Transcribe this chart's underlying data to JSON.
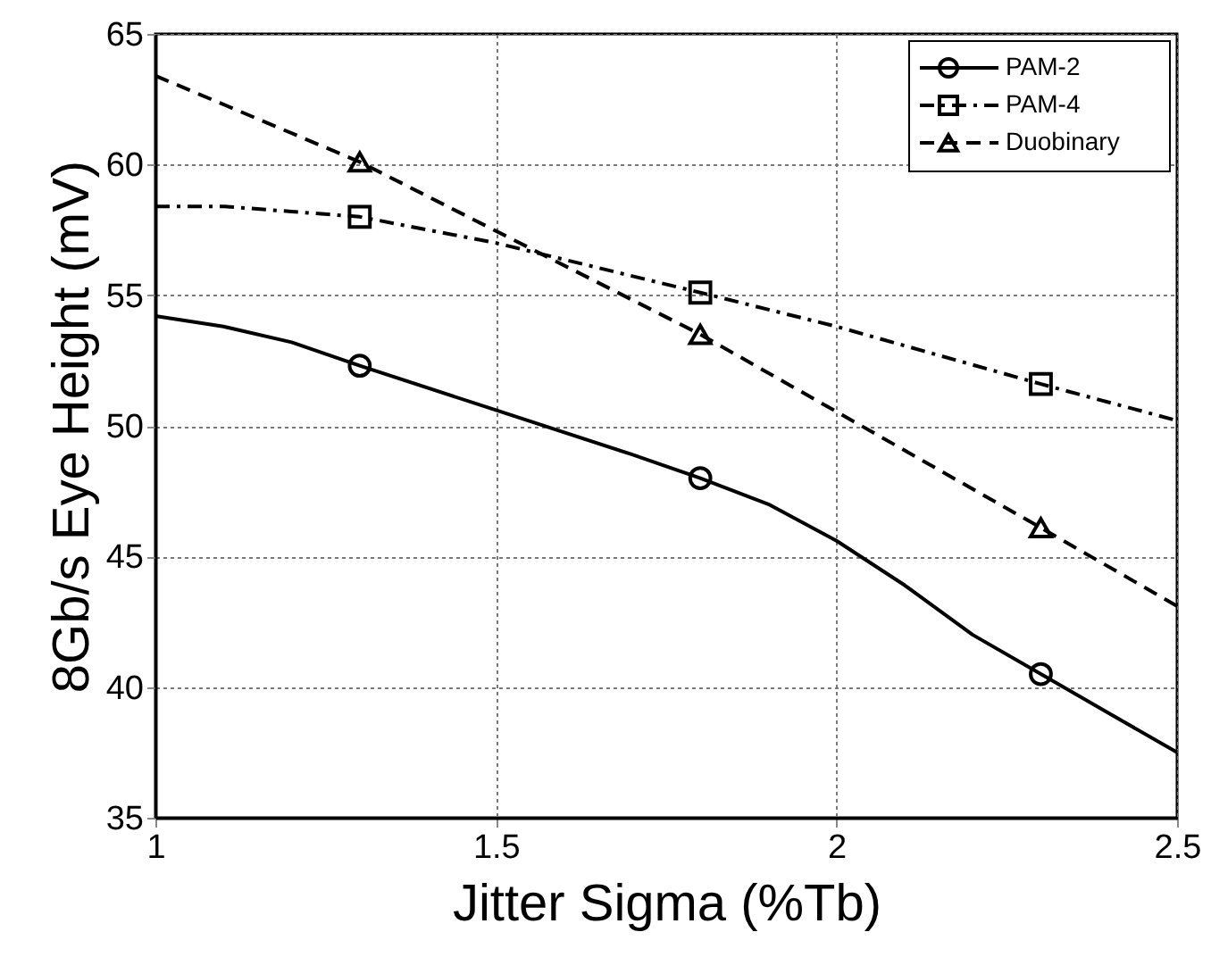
{
  "chart_data": {
    "type": "line",
    "xlabel": "Jitter Sigma (%Tb)",
    "ylabel": "8Gb/s Eye Height (mV)",
    "xlim": [
      1,
      2.5
    ],
    "xticks": [
      1,
      1.5,
      2,
      2.5
    ],
    "ylim": [
      35,
      65
    ],
    "yticks": [
      35,
      40,
      45,
      50,
      55,
      60,
      65
    ],
    "grid": true,
    "legend": "top right",
    "series": [
      {
        "name": "PAM-2",
        "type": "line",
        "color": "#000000",
        "line_style": "solid",
        "x": [
          1,
          1.1,
          1.2,
          1.3,
          1.5,
          1.7,
          1.8,
          1.9,
          2.0,
          2.1,
          2.2,
          2.3,
          2.4,
          2.5
        ],
        "values": [
          54.2,
          53.8,
          53.2,
          52.3,
          50.6,
          48.9,
          48.0,
          47.0,
          45.6,
          43.9,
          42.0,
          40.5,
          39.0,
          37.5
        ]
      },
      {
        "type": "scatter",
        "color": "#000000",
        "marker": "circle",
        "x": [
          1.3,
          1.8,
          2.3
        ],
        "values": [
          52.3,
          48.0,
          40.5
        ]
      },
      {
        "name": "PAM-4",
        "type": "line",
        "color": "#000000",
        "line_style": "dashdot",
        "x": [
          1,
          1.1,
          1.2,
          1.3,
          1.5,
          1.8,
          2.0,
          2.3,
          2.5
        ],
        "values": [
          58.4,
          58.4,
          58.2,
          58.0,
          57.0,
          55.1,
          53.8,
          51.6,
          50.2
        ]
      },
      {
        "type": "scatter",
        "color": "#000000",
        "marker": "square",
        "x": [
          1.3,
          1.8,
          2.3
        ],
        "values": [
          58.0,
          55.1,
          51.6
        ]
      },
      {
        "name": "Duobinary",
        "type": "line",
        "color": "#000000",
        "line_style": "dashed",
        "x": [
          1,
          1.3,
          1.8,
          2.3,
          2.5
        ],
        "values": [
          63.4,
          60.1,
          53.5,
          46.1,
          43.1
        ]
      },
      {
        "type": "scatter",
        "color": "#000000",
        "marker": "triangle",
        "x": [
          1.3,
          1.8,
          2.3
        ],
        "values": [
          60.1,
          53.5,
          46.1
        ]
      }
    ]
  }
}
